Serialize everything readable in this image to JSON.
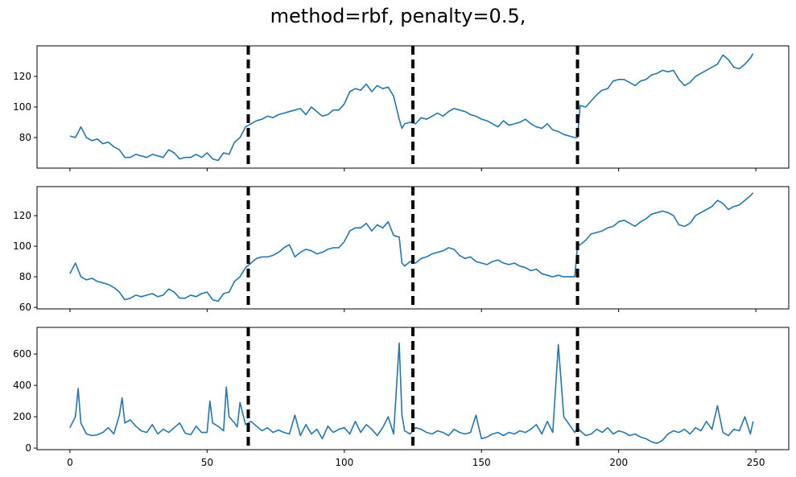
{
  "title": "method=rbf, penalty=0.5,",
  "chart_data": [
    {
      "type": "line",
      "panel": "top",
      "xlim": [
        -12,
        262
      ],
      "ylim": [
        60,
        140
      ],
      "yticks": [
        80,
        100,
        120
      ],
      "xticks": [
        0,
        50,
        100,
        150,
        200,
        250
      ],
      "show_xtick_labels": false,
      "grid": false,
      "color": "#1f77b4",
      "breakpoints": [
        65,
        125,
        185
      ],
      "series": [
        {
          "x": [
            0,
            2,
            4,
            6,
            8,
            10,
            12,
            14,
            16,
            18,
            20,
            22,
            24,
            26,
            28,
            30,
            32,
            34,
            36,
            38,
            40,
            42,
            44,
            46,
            48,
            50,
            52,
            54,
            56,
            58,
            60,
            62,
            64,
            66,
            68,
            70,
            72,
            74,
            76,
            78,
            80,
            82,
            84,
            86,
            88,
            90,
            92,
            94,
            96,
            98,
            100,
            102,
            104,
            106,
            108,
            110,
            112,
            114,
            116,
            118,
            120,
            121,
            122,
            124,
            126,
            128,
            130,
            132,
            134,
            136,
            138,
            140,
            142,
            144,
            146,
            148,
            150,
            152,
            154,
            156,
            158,
            160,
            162,
            164,
            166,
            168,
            170,
            172,
            174,
            176,
            178,
            180,
            182,
            184,
            185,
            186,
            188,
            190,
            192,
            194,
            196,
            198,
            200,
            202,
            204,
            206,
            208,
            210,
            212,
            214,
            216,
            218,
            220,
            222,
            224,
            226,
            228,
            230,
            232,
            234,
            236,
            238,
            240,
            242,
            244,
            246,
            248,
            249
          ],
          "y": [
            81,
            80,
            87,
            80,
            78,
            79,
            76,
            77,
            74,
            72,
            67,
            67,
            69,
            68,
            67,
            69,
            68,
            67,
            72,
            70,
            66,
            67,
            67,
            69,
            67,
            70,
            66,
            65,
            70,
            69,
            77,
            80,
            87,
            89,
            91,
            92,
            94,
            93,
            95,
            96,
            97,
            98,
            99,
            95,
            100,
            97,
            94,
            95,
            98,
            98,
            102,
            110,
            112,
            111,
            115,
            110,
            114,
            112,
            113,
            107,
            92,
            86,
            89,
            90,
            89,
            93,
            92,
            94,
            96,
            94,
            97,
            99,
            98,
            97,
            95,
            94,
            92,
            91,
            89,
            87,
            91,
            88,
            89,
            90,
            92,
            89,
            87,
            86,
            89,
            85,
            84,
            82,
            81,
            80,
            80,
            101,
            100,
            104,
            108,
            111,
            112,
            117,
            118,
            118,
            116,
            114,
            117,
            118,
            121,
            122,
            124,
            123,
            124,
            118,
            114,
            116,
            120,
            122,
            124,
            126,
            128,
            134,
            131,
            126,
            125,
            128,
            132,
            135
          ]
        }
      ]
    },
    {
      "type": "line",
      "panel": "middle",
      "xlim": [
        -12,
        262
      ],
      "ylim": [
        59,
        139
      ],
      "yticks": [
        60,
        80,
        100,
        120
      ],
      "xticks": [
        0,
        50,
        100,
        150,
        200,
        250
      ],
      "show_xtick_labels": false,
      "grid": false,
      "color": "#1f77b4",
      "breakpoints": [
        65,
        125,
        185
      ],
      "series": [
        {
          "x": [
            0,
            2,
            4,
            6,
            8,
            10,
            12,
            14,
            16,
            18,
            20,
            22,
            24,
            26,
            28,
            30,
            32,
            34,
            36,
            38,
            40,
            42,
            44,
            46,
            48,
            50,
            52,
            54,
            56,
            58,
            60,
            62,
            64,
            66,
            68,
            70,
            72,
            74,
            76,
            78,
            80,
            82,
            84,
            86,
            88,
            90,
            92,
            94,
            96,
            98,
            100,
            102,
            104,
            106,
            108,
            110,
            112,
            114,
            116,
            118,
            120,
            121,
            122,
            124,
            126,
            128,
            130,
            132,
            134,
            136,
            138,
            140,
            142,
            144,
            146,
            148,
            150,
            152,
            154,
            156,
            158,
            160,
            162,
            164,
            166,
            168,
            170,
            172,
            174,
            176,
            178,
            180,
            182,
            184,
            185,
            186,
            188,
            190,
            192,
            194,
            196,
            198,
            200,
            202,
            204,
            206,
            208,
            210,
            212,
            214,
            216,
            218,
            220,
            222,
            224,
            226,
            228,
            230,
            232,
            234,
            236,
            238,
            240,
            242,
            244,
            246,
            248,
            249
          ],
          "y": [
            82,
            89,
            80,
            78,
            79,
            77,
            76,
            75,
            73,
            70,
            65,
            66,
            68,
            67,
            68,
            69,
            67,
            68,
            72,
            70,
            66,
            66,
            68,
            67,
            69,
            70,
            65,
            64,
            69,
            70,
            77,
            80,
            86,
            89,
            92,
            93,
            93,
            94,
            96,
            99,
            101,
            93,
            96,
            98,
            97,
            95,
            96,
            98,
            99,
            99,
            103,
            110,
            112,
            112,
            115,
            110,
            114,
            112,
            116,
            107,
            106,
            89,
            87,
            90,
            89,
            92,
            93,
            95,
            96,
            97,
            99,
            98,
            94,
            92,
            93,
            90,
            89,
            88,
            90,
            91,
            89,
            88,
            89,
            87,
            86,
            84,
            85,
            82,
            81,
            80,
            81,
            80,
            80,
            80,
            100,
            101,
            104,
            108,
            109,
            110,
            112,
            113,
            116,
            117,
            115,
            113,
            116,
            118,
            121,
            122,
            123,
            122,
            120,
            114,
            113,
            115,
            120,
            122,
            124,
            126,
            130,
            128,
            124,
            126,
            127,
            130,
            133,
            135
          ]
        }
      ]
    },
    {
      "type": "line",
      "panel": "bottom",
      "xlim": [
        -12,
        262
      ],
      "ylim": [
        -10,
        770
      ],
      "yticks": [
        0,
        200,
        400,
        600
      ],
      "xticks": [
        0,
        50,
        100,
        150,
        200,
        250
      ],
      "show_xtick_labels": true,
      "grid": false,
      "color": "#1f77b4",
      "breakpoints": [
        65,
        125,
        185
      ],
      "series": [
        {
          "x": [
            0,
            2,
            3,
            4,
            6,
            8,
            10,
            12,
            14,
            16,
            18,
            19,
            20,
            22,
            24,
            26,
            28,
            30,
            32,
            34,
            36,
            38,
            40,
            42,
            44,
            46,
            48,
            50,
            51,
            52,
            54,
            56,
            57,
            58,
            60,
            61,
            62,
            64,
            66,
            68,
            70,
            72,
            74,
            76,
            78,
            80,
            82,
            84,
            86,
            88,
            90,
            92,
            94,
            96,
            98,
            100,
            102,
            104,
            106,
            108,
            110,
            112,
            114,
            116,
            118,
            120,
            121,
            122,
            124,
            126,
            128,
            130,
            132,
            134,
            136,
            138,
            140,
            142,
            144,
            146,
            148,
            150,
            152,
            154,
            156,
            158,
            160,
            162,
            164,
            166,
            168,
            170,
            172,
            174,
            176,
            178,
            180,
            182,
            184,
            185,
            186,
            188,
            190,
            192,
            194,
            196,
            198,
            200,
            202,
            204,
            206,
            208,
            210,
            212,
            214,
            216,
            218,
            220,
            222,
            224,
            226,
            228,
            230,
            232,
            234,
            236,
            238,
            240,
            242,
            244,
            246,
            248,
            249
          ],
          "y": [
            130,
            200,
            380,
            160,
            90,
            80,
            85,
            100,
            130,
            90,
            210,
            320,
            160,
            180,
            140,
            110,
            100,
            150,
            90,
            120,
            100,
            130,
            160,
            95,
            85,
            140,
            100,
            100,
            300,
            160,
            140,
            110,
            390,
            200,
            160,
            135,
            290,
            150,
            170,
            140,
            110,
            130,
            100,
            115,
            100,
            90,
            210,
            80,
            150,
            90,
            120,
            60,
            140,
            100,
            120,
            130,
            90,
            170,
            100,
            150,
            120,
            80,
            130,
            200,
            90,
            670,
            210,
            110,
            90,
            130,
            120,
            100,
            90,
            110,
            100,
            80,
            120,
            100,
            90,
            100,
            210,
            60,
            70,
            90,
            100,
            80,
            100,
            90,
            110,
            100,
            120,
            150,
            90,
            170,
            100,
            660,
            200,
            150,
            100,
            130,
            110,
            80,
            90,
            120,
            100,
            130,
            90,
            110,
            100,
            80,
            90,
            70,
            60,
            40,
            30,
            50,
            90,
            110,
            100,
            120,
            90,
            130,
            110,
            170,
            120,
            270,
            100,
            80,
            120,
            110,
            200,
            90,
            170
          ]
        }
      ]
    }
  ]
}
